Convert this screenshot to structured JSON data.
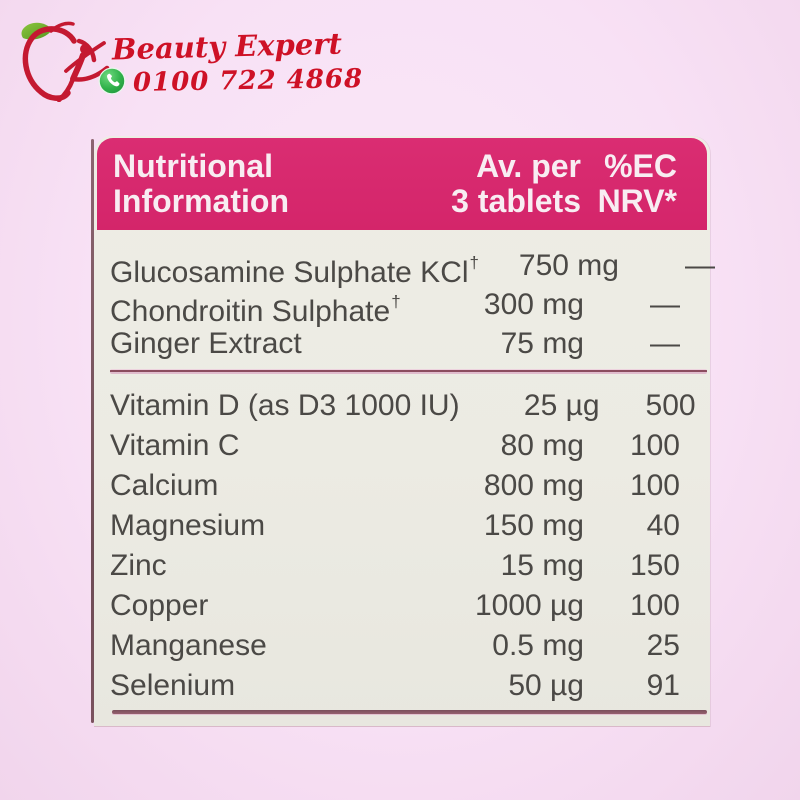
{
  "logo": {
    "brand_name": "Beauty Expert",
    "phone": "0100 722 4868",
    "brand_color": "#ce1126",
    "whatsapp_green": "#2fb14a",
    "apple_red": "#c41931",
    "leaf_green": "#6fae2d"
  },
  "label": {
    "accent_color": "#d62a6e",
    "panel_color": "#ecebe4",
    "text_color": "#4b4946",
    "header": {
      "title_line1": "Nutritional",
      "title_line2": "Information",
      "amount_line1": "Av. per",
      "amount_line2": "3 tablets",
      "nrv_line1": "%EC",
      "nrv_line2": "NRV*"
    },
    "sections": [
      {
        "rows": [
          {
            "name": "Glucosamine Sulphate KCl",
            "dagger": "†",
            "amount": "750 mg",
            "nrv": "—"
          },
          {
            "name": "Chondroitin Sulphate",
            "dagger": "†",
            "amount": "300 mg",
            "nrv": "—"
          },
          {
            "name": "Ginger Extract",
            "dagger": "",
            "amount": "75 mg",
            "nrv": "—"
          }
        ]
      },
      {
        "rows": [
          {
            "name": "Vitamin D (as D3 1000 IU)",
            "dagger": "",
            "amount": "25 µg",
            "nrv": "500"
          },
          {
            "name": "Vitamin C",
            "dagger": "",
            "amount": "80 mg",
            "nrv": "100"
          },
          {
            "name": "Calcium",
            "dagger": "",
            "amount": "800 mg",
            "nrv": "100"
          },
          {
            "name": "Magnesium",
            "dagger": "",
            "amount": "150 mg",
            "nrv": "40"
          },
          {
            "name": "Zinc",
            "dagger": "",
            "amount": "15 mg",
            "nrv": "150"
          },
          {
            "name": "Copper",
            "dagger": "",
            "amount": "1000 µg",
            "nrv": "100"
          },
          {
            "name": "Manganese",
            "dagger": "",
            "amount": "0.5 mg",
            "nrv": "25"
          },
          {
            "name": "Selenium",
            "dagger": "",
            "amount": "50 µg",
            "nrv": "91"
          }
        ]
      }
    ]
  }
}
